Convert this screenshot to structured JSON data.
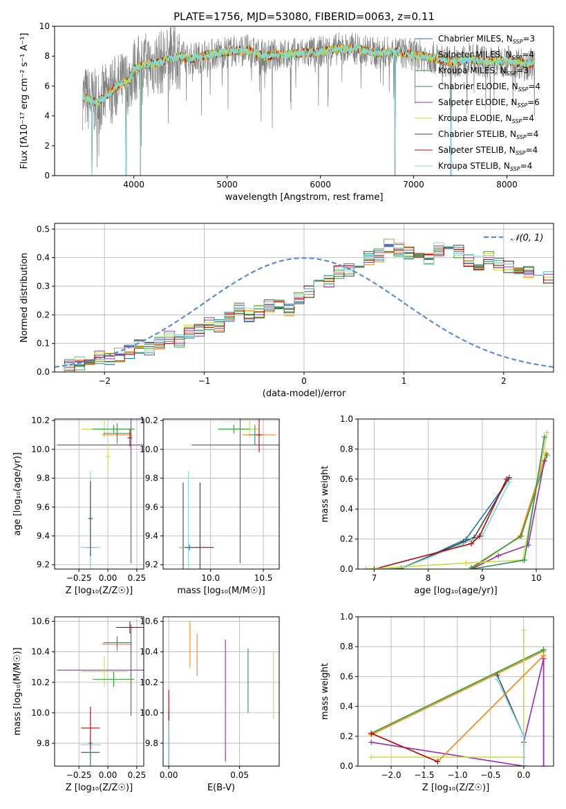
{
  "figure_title": "PLATE=1756, MJD=53080, FIBERID=0063, z=0.11",
  "series_colors": {
    "Chabrier MILES": "#1f77b4",
    "Salpeter MILES": "#ff7f0e",
    "Kroupa MILES": "#2ca02c",
    "Chabrier ELODIE": "#2e8b57",
    "Salpeter ELODIE": "#9c27b0",
    "Kroupa ELODIE": "#c8dc3c",
    "Chabrier STELIB": "#444444",
    "Salpeter STELIB": "#c00000",
    "Kroupa STELIB": "#80d8e0",
    "gaussian": "#5b8bd4",
    "observed": "#808080"
  },
  "chart_data": [
    {
      "type": "line",
      "title": "PLATE=1756, MJD=53080, FIBERID=0063, z=0.11",
      "xlabel": "wavelength [Angstrom, rest frame]",
      "ylabel": "Flux [fλ10⁻¹⁷ erg cm⁻² s⁻¹ A⁻¹]",
      "xlim": [
        3150,
        8500
      ],
      "ylim": [
        0,
        10
      ],
      "xticks": [
        4000,
        5000,
        6000,
        7000,
        8000
      ],
      "yticks": [
        0,
        2,
        4,
        6,
        8,
        10
      ],
      "grid": false,
      "legend_position": "top-right",
      "legend": [
        "Chabrier MILES, N_SSP=3",
        "Salpeter MILES, N_SSP=4",
        "Kroupa MILES, N_SSP=3",
        "Chabrier ELODIE, N_SSP=4",
        "Salpeter ELODIE, N_SSP=6",
        "Kroupa ELODIE, N_SSP=4",
        "Chabrier STELIB, N_SSP=4",
        "Salpeter STELIB, N_SSP=4",
        "Kroupa STELIB, N_SSP=4"
      ],
      "model_envelope": {
        "x": [
          3450,
          3520,
          3600,
          3700,
          3800,
          3900,
          3950,
          4000,
          4100,
          4200,
          4300,
          4400,
          4500,
          4600,
          4800,
          5000,
          5200,
          5400,
          5600,
          5800,
          6000,
          6200,
          6400,
          6600,
          6800,
          7000,
          7200,
          7400,
          7600,
          7800,
          8000,
          8200,
          8300
        ],
        "y": [
          5.3,
          5.1,
          4.9,
          5.3,
          5.9,
          6.2,
          6.3,
          7.1,
          7.4,
          7.5,
          7.6,
          7.9,
          8.0,
          7.8,
          8.1,
          8.3,
          8.4,
          8.0,
          8.1,
          8.2,
          8.3,
          8.5,
          8.5,
          8.2,
          8.3,
          8.1,
          7.9,
          7.6,
          7.8,
          7.6,
          7.7,
          7.5,
          7.5
        ]
      },
      "dips_to_zero": [
        3550,
        3915,
        4070,
        6800,
        7400
      ],
      "observed_spectrum_range": [
        3450,
        8300
      ]
    },
    {
      "type": "bar",
      "title": "",
      "xlabel": "(data-model)/error",
      "ylabel": "Normed distribution",
      "xlim": [
        -2.5,
        2.5
      ],
      "ylim": [
        0,
        0.52
      ],
      "xticks": [
        -2,
        -1,
        0,
        1,
        2
      ],
      "yticks": [
        0,
        0.1,
        0.2,
        0.3,
        0.4,
        0.5
      ],
      "grid": true,
      "legend_position": "top-right",
      "legend": [
        "𝒩(0, 1)"
      ],
      "bin_width": 0.1,
      "bin_start": -2.5,
      "hist_envelope": [
        0.01,
        0.02,
        0.03,
        0.04,
        0.05,
        0.05,
        0.06,
        0.07,
        0.09,
        0.08,
        0.1,
        0.12,
        0.11,
        0.14,
        0.15,
        0.17,
        0.16,
        0.19,
        0.22,
        0.2,
        0.21,
        0.23,
        0.24,
        0.22,
        0.26,
        0.28,
        0.3,
        0.32,
        0.35,
        0.36,
        0.38,
        0.4,
        0.41,
        0.44,
        0.43,
        0.42,
        0.41,
        0.4,
        0.43,
        0.44,
        0.42,
        0.39,
        0.38,
        0.4,
        0.38,
        0.37,
        0.36,
        0.35,
        0.34,
        0.33,
        0.32,
        0.3,
        0.29,
        0.27,
        0.26,
        0.24,
        0.22,
        0.2,
        0.18,
        0.16,
        0.14,
        0.13,
        0.12,
        0.1,
        0.09,
        0.08,
        0.08,
        0.07,
        0.06,
        0.05,
        0.05,
        0.04,
        0.03,
        0.03,
        0.02
      ]
    },
    {
      "type": "scatter",
      "title": "",
      "xlabel": "Z [log₁₀(Z/Z☉)]",
      "ylabel": "age [log₁₀(age/yr)]",
      "xlim": [
        -0.46,
        0.31
      ],
      "ylim": [
        9.17,
        10.21
      ],
      "xticks": [
        -0.25,
        0.0,
        0.25
      ],
      "yticks": [
        9.2,
        9.4,
        9.6,
        9.8,
        10.0,
        10.2
      ],
      "points": [
        {
          "series": "Chabrier MILES",
          "x": -0.15,
          "y": 9.32,
          "xerr": 0.05,
          "yerr": 0.45
        },
        {
          "series": "Kroupa STELIB",
          "x": -0.15,
          "y": 9.32,
          "xerr": 0.09,
          "yerr": 0.53
        },
        {
          "series": "Chabrier STELIB",
          "x": -0.15,
          "y": 9.52,
          "xerr": 0.02,
          "yerr": 0.26
        },
        {
          "series": "Salpeter ELODIE",
          "x": 0.2,
          "y": 10.03,
          "xerr": 0.64,
          "yerr": 0.82
        },
        {
          "series": "Kroupa ELODIE",
          "x": -0.03,
          "y": 10.14,
          "xerr": 0.2,
          "yerr": 0.06
        },
        {
          "series": "Kroupa MILES",
          "x": 0.05,
          "y": 10.14,
          "xerr": 0.18,
          "yerr": 0.03
        },
        {
          "series": "Salpeter MILES",
          "x": 0.08,
          "y": 10.1,
          "xerr": 0.13,
          "yerr": 0.02
        },
        {
          "series": "Chabrier ELODIE",
          "x": 0.08,
          "y": 10.11,
          "xerr": 0.12,
          "yerr": 0.07
        },
        {
          "series": "Salpeter STELIB",
          "x": 0.19,
          "y": 10.08,
          "xerr": 0.02,
          "yerr": 0.06
        },
        {
          "series": "Kroupa ELODIE",
          "x": 0.0,
          "y": 9.95,
          "xerr": 0.02,
          "yerr": 0.09
        }
      ]
    },
    {
      "type": "scatter",
      "title": "",
      "xlabel": "mass [log₁₀(M/M☉)]",
      "ylabel": "",
      "xlim": [
        9.55,
        10.65
      ],
      "ylim": [
        9.17,
        10.21
      ],
      "xticks": [
        10.0,
        10.5
      ],
      "yticks": [
        9.2,
        9.4,
        9.6,
        9.8,
        10.0,
        10.2
      ],
      "points": [
        {
          "series": "Chabrier STELIB",
          "x": 9.74,
          "y": 9.32,
          "xerr": 0.04,
          "yerr": 0.45
        },
        {
          "series": "Kroupa STELIB",
          "x": 9.79,
          "y": 9.32,
          "xerr": 0.09,
          "yerr": 0.53
        },
        {
          "series": "Salpeter STELIB",
          "x": 9.9,
          "y": 9.32,
          "xerr": 0.13,
          "yerr": 0.45
        },
        {
          "series": "Chabrier MILES",
          "x": 9.8,
          "y": 9.32,
          "xerr": 0.05,
          "yerr": 0.02
        },
        {
          "series": "Salpeter ELODIE",
          "x": 10.28,
          "y": 10.03,
          "xerr": 0.46,
          "yerr": 0.82
        },
        {
          "series": "Kroupa ELODIE",
          "x": 10.37,
          "y": 10.14,
          "xerr": 0.09,
          "yerr": 0.06
        },
        {
          "series": "Kroupa MILES",
          "x": 10.22,
          "y": 10.14,
          "xerr": 0.15,
          "yerr": 0.03
        },
        {
          "series": "Salpeter MILES",
          "x": 10.46,
          "y": 10.1,
          "xerr": 0.16,
          "yerr": 0.02
        },
        {
          "series": "Chabrier ELODIE",
          "x": 10.42,
          "y": 10.1,
          "xerr": 0.05,
          "yerr": 0.07
        },
        {
          "series": "Salpeter STELIB",
          "x": 10.46,
          "y": 10.1,
          "xerr": 0.03,
          "yerr": 0.12
        }
      ]
    },
    {
      "type": "line",
      "title": "",
      "xlabel": "age [log₁₀(age/yr)]",
      "ylabel": "mass weight",
      "xlim": [
        6.7,
        10.32
      ],
      "ylim": [
        0,
        1.0
      ],
      "xticks": [
        7,
        8,
        9,
        10
      ],
      "yticks": [
        0.0,
        0.2,
        0.4,
        0.6,
        0.8,
        1.0
      ],
      "grid": true,
      "series": [
        {
          "name": "Chabrier MILES",
          "x": [
            7.5,
            8.7,
            9.5
          ],
          "y": [
            0.0,
            0.2,
            0.6
          ]
        },
        {
          "name": "Chabrier STELIB",
          "x": [
            6.85,
            7.5,
            8.65,
            8.85,
            9.5
          ],
          "y": [
            0.0,
            0.005,
            0.18,
            0.21,
            0.61
          ]
        },
        {
          "name": "Kroupa STELIB",
          "x": [
            6.85,
            7.55,
            8.8,
            9.0,
            9.5
          ],
          "y": [
            0.0,
            0.01,
            0.19,
            0.22,
            0.58
          ]
        },
        {
          "name": "Salpeter STELIB",
          "x": [
            7.0,
            8.8,
            8.95,
            9.45
          ],
          "y": [
            0.0,
            0.17,
            0.22,
            0.6
          ]
        },
        {
          "name": "Salpeter MILES",
          "x": [
            8.8,
            9.7,
            10.18
          ],
          "y": [
            0.0,
            0.22,
            0.77
          ]
        },
        {
          "name": "Kroupa MILES",
          "x": [
            8.8,
            9.72,
            10.2
          ],
          "y": [
            0.01,
            0.22,
            0.76
          ]
        },
        {
          "name": "Salpeter ELODIE",
          "x": [
            8.8,
            9.3,
            9.85,
            10.15
          ],
          "y": [
            0.0,
            0.09,
            0.16,
            0.72
          ]
        },
        {
          "name": "Kroupa ELODIE",
          "x": [
            6.85,
            8.7,
            9.75,
            10.2
          ],
          "y": [
            0.0,
            0.04,
            0.06,
            0.91
          ]
        },
        {
          "name": "Chabrier ELODIE",
          "x": [
            8.8,
            9.78,
            10.15
          ],
          "y": [
            0.0,
            0.06,
            0.88
          ]
        }
      ]
    },
    {
      "type": "scatter",
      "title": "",
      "xlabel": "Z [log₁₀(Z/Z☉)]",
      "ylabel": "mass [log₁₀(M/M☉)]",
      "xlim": [
        -0.46,
        0.31
      ],
      "ylim": [
        9.65,
        10.63
      ],
      "xticks": [
        -0.25,
        0.0,
        0.25
      ],
      "yticks": [
        9.8,
        10.0,
        10.2,
        10.4,
        10.6
      ],
      "points": [
        {
          "series": "Chabrier STELIB",
          "x": -0.15,
          "y": 9.74,
          "xerr": 0.08,
          "yerr": 0.06
        },
        {
          "series": "Kroupa STELIB",
          "x": -0.15,
          "y": 9.79,
          "xerr": 0.09,
          "yerr": 0.06
        },
        {
          "series": "Chabrier MILES",
          "x": -0.15,
          "y": 9.8,
          "xerr": 0.02,
          "yerr": 0.22
        },
        {
          "series": "Salpeter STELIB",
          "x": -0.15,
          "y": 9.9,
          "xerr": 0.08,
          "yerr": 0.14
        },
        {
          "series": "Salpeter ELODIE",
          "x": 0.2,
          "y": 10.28,
          "xerr": 0.64,
          "yerr": 0.3
        },
        {
          "series": "Kroupa ELODIE",
          "x": -0.03,
          "y": 10.27,
          "xerr": 0.2,
          "yerr": 0.1
        },
        {
          "series": "Kroupa MILES",
          "x": 0.05,
          "y": 10.22,
          "xerr": 0.18,
          "yerr": 0.05
        },
        {
          "series": "Salpeter MILES",
          "x": 0.08,
          "y": 10.45,
          "xerr": 0.13,
          "yerr": 0.05
        },
        {
          "series": "Chabrier ELODIE",
          "x": 0.08,
          "y": 10.46,
          "xerr": 0.12,
          "yerr": 0.04
        },
        {
          "series": "Salpeter STELIB",
          "x": 0.19,
          "y": 10.56,
          "xerr": 0.12,
          "yerr": 0.04
        }
      ]
    },
    {
      "type": "scatter",
      "title": "",
      "xlabel": "E(B-V)",
      "ylabel": "",
      "xlim": [
        -0.004,
        0.078
      ],
      "ylim": [
        9.65,
        10.63
      ],
      "xticks": [
        0.0,
        0.05
      ],
      "yticks": [
        9.8,
        10.0,
        10.2,
        10.4,
        10.6
      ],
      "points": [
        {
          "series": "Chabrier MILES",
          "x": 0.0,
          "y": 9.8,
          "yerr": 0.22
        },
        {
          "series": "Salpeter STELIB",
          "x": 0.0,
          "y": 9.9,
          "yerr": 0.25
        },
        {
          "series": "Kroupa STELIB",
          "x": 0.0,
          "y": 9.8,
          "yerr": 0.15
        },
        {
          "series": "Salpeter MILES",
          "x": 0.015,
          "y": 10.45,
          "yerr": 0.15
        },
        {
          "series": "Salpeter MILES",
          "x": 0.02,
          "y": 10.38,
          "yerr": 0.14
        },
        {
          "series": "Salpeter ELODIE",
          "x": 0.04,
          "y": 10.08,
          "yerr": 0.4
        },
        {
          "series": "Chabrier ELODIE",
          "x": 0.056,
          "y": 10.21,
          "yerr": 0.21
        },
        {
          "series": "Kroupa ELODIE",
          "x": 0.074,
          "y": 10.18,
          "yerr": 0.22
        }
      ]
    },
    {
      "type": "line",
      "title": "",
      "xlabel": "Z [log₁₀(Z/Z☉)]",
      "ylabel": "mass weight",
      "xlim": [
        -2.5,
        0.45
      ],
      "ylim": [
        0,
        1.0
      ],
      "xticks": [
        -2.0,
        -1.5,
        -1.0,
        -0.5,
        0.0
      ],
      "yticks": [
        0.0,
        0.2,
        0.4,
        0.6,
        0.8,
        1.0
      ],
      "grid": true,
      "series": [
        {
          "name": "Salpeter MILES",
          "x": [
            -2.3,
            0.3,
            0.3
          ],
          "y": [
            0.21,
            0.77,
            0.0
          ]
        },
        {
          "name": "Kroupa MILES",
          "x": [
            -2.3,
            0.3
          ],
          "y": [
            0.22,
            0.78
          ]
        },
        {
          "name": "Salpeter ELODIE",
          "x": [
            -2.3,
            0.0,
            0.0,
            0.3,
            0.3
          ],
          "y": [
            0.16,
            0.0,
            0.16,
            0.72,
            0.0
          ]
        },
        {
          "name": "Kroupa ELODIE",
          "x": [
            -2.3,
            0.0,
            0.0
          ],
          "y": [
            0.06,
            0.06,
            0.91
          ]
        },
        {
          "name": "Chabrier STELIB",
          "x": [
            -0.4,
            0.0,
            0.0
          ],
          "y": [
            0.61,
            0.2,
            0.0
          ]
        },
        {
          "name": "Kroupa STELIB",
          "x": [
            -0.4,
            0.0,
            0.0
          ],
          "y": [
            0.58,
            0.2,
            0.0
          ]
        },
        {
          "name": "Salpeter MILES",
          "x": [
            -1.3,
            0.3
          ],
          "y": [
            0.03,
            0.74
          ]
        },
        {
          "name": "Salpeter STELIB",
          "x": [
            -2.3,
            -1.3
          ],
          "y": [
            0.22,
            0.03
          ]
        }
      ]
    }
  ]
}
